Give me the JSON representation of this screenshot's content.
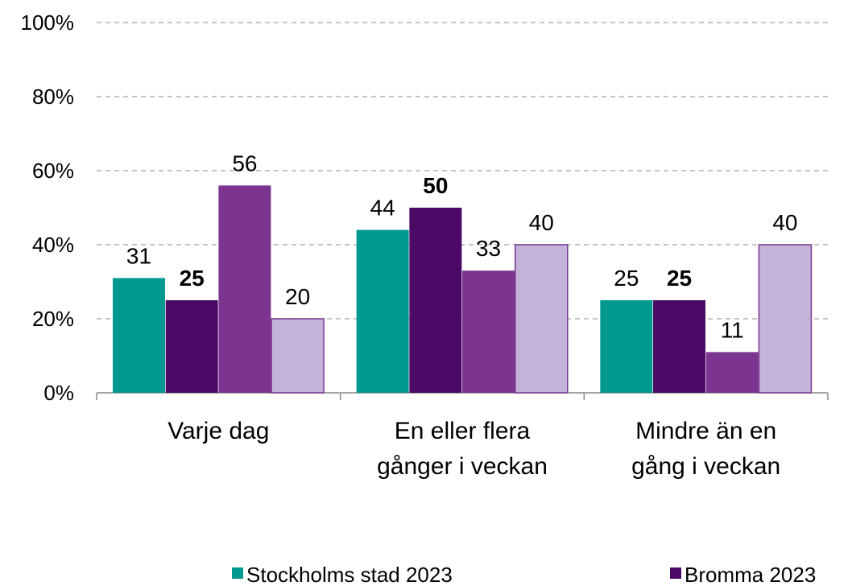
{
  "chart_data": {
    "type": "bar",
    "categories": [
      "Varje dag",
      "En eller flera\ngånger i veckan",
      "Mindre än en\ngång i veckan"
    ],
    "series": [
      {
        "name": "Stockholms stad 2023",
        "color": "#009990",
        "values": [
          31,
          44,
          25
        ]
      },
      {
        "name": "Bromma 2023",
        "color": "#4b0a66",
        "values": [
          25,
          50,
          25
        ],
        "label_bold": true
      },
      {
        "color": "#7b3590",
        "values": [
          56,
          33,
          11
        ]
      },
      {
        "color": "#c3b3d8",
        "values": [
          20,
          40,
          40
        ]
      }
    ],
    "ylim": [
      0,
      100
    ],
    "yticks": [
      {
        "value": 0,
        "label": "0%"
      },
      {
        "value": 20,
        "label": "20%"
      },
      {
        "value": 40,
        "label": "40%"
      },
      {
        "value": 60,
        "label": "60%"
      },
      {
        "value": 80,
        "label": "80%"
      },
      {
        "value": 100,
        "label": "100%"
      }
    ],
    "grid": true
  }
}
